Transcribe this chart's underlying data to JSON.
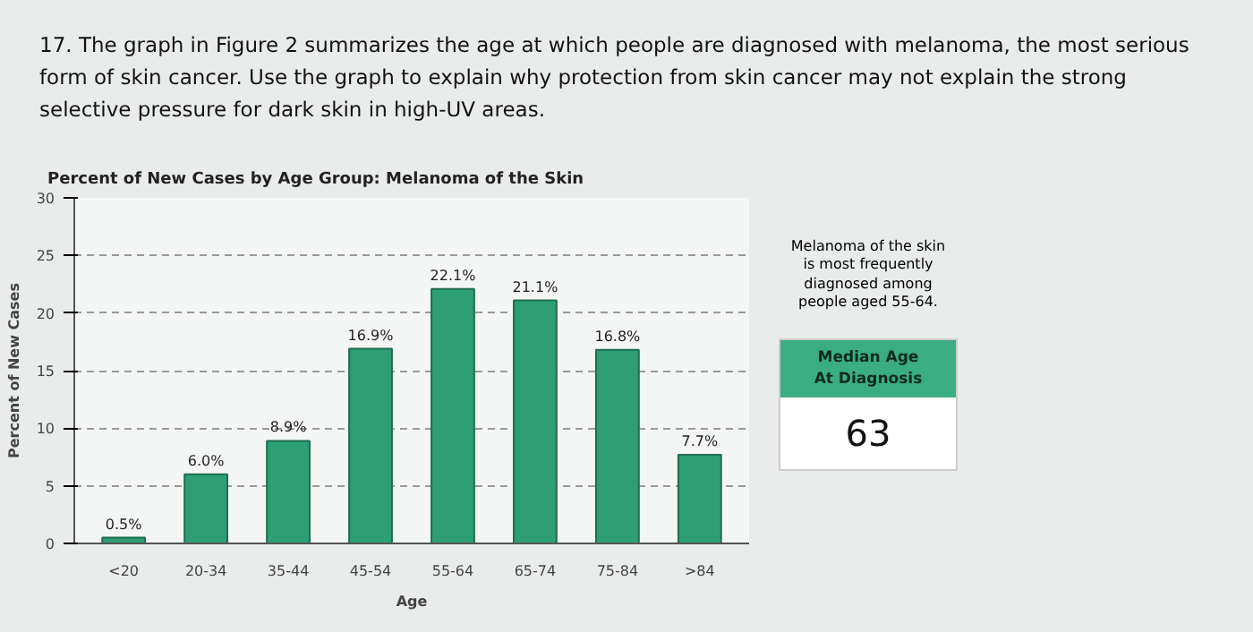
{
  "chart_data": {
    "type": "bar",
    "title": "Percent of New Cases by Age Group: Melanoma of the Skin",
    "xlabel": "Age",
    "ylabel": "Percent of New Cases",
    "categories": [
      "<20",
      "20-34",
      "35-44",
      "45-54",
      "55-64",
      "65-74",
      "75-84",
      ">84"
    ],
    "values": [
      0.5,
      6.0,
      8.9,
      16.9,
      22.1,
      21.1,
      16.8,
      7.7
    ],
    "value_labels": [
      "0.5%",
      "6.0%",
      "8.9%",
      "16.9%",
      "22.1%",
      "21.1%",
      "16.8%",
      "7.7%"
    ],
    "color": "#2e9e74",
    "ylim": [
      0,
      30
    ],
    "yticks": [
      0,
      5,
      10,
      15,
      20,
      25,
      30
    ],
    "grid": "y",
    "annotations": [
      "17. The graph in Figure 2 summarizes the age at which people are diagnosed with melanoma, the most serious\nform of skin cancer. Use the graph to explain why protection from skin cancer may not explain the strong\nselective pressure for dark skin in high-UV areas.",
      "Melanoma of the skin\nis most frequently\ndiagnosed among\npeople aged 55-64.",
      "Median Age\nAt Diagnosis",
      "63"
    ]
  }
}
